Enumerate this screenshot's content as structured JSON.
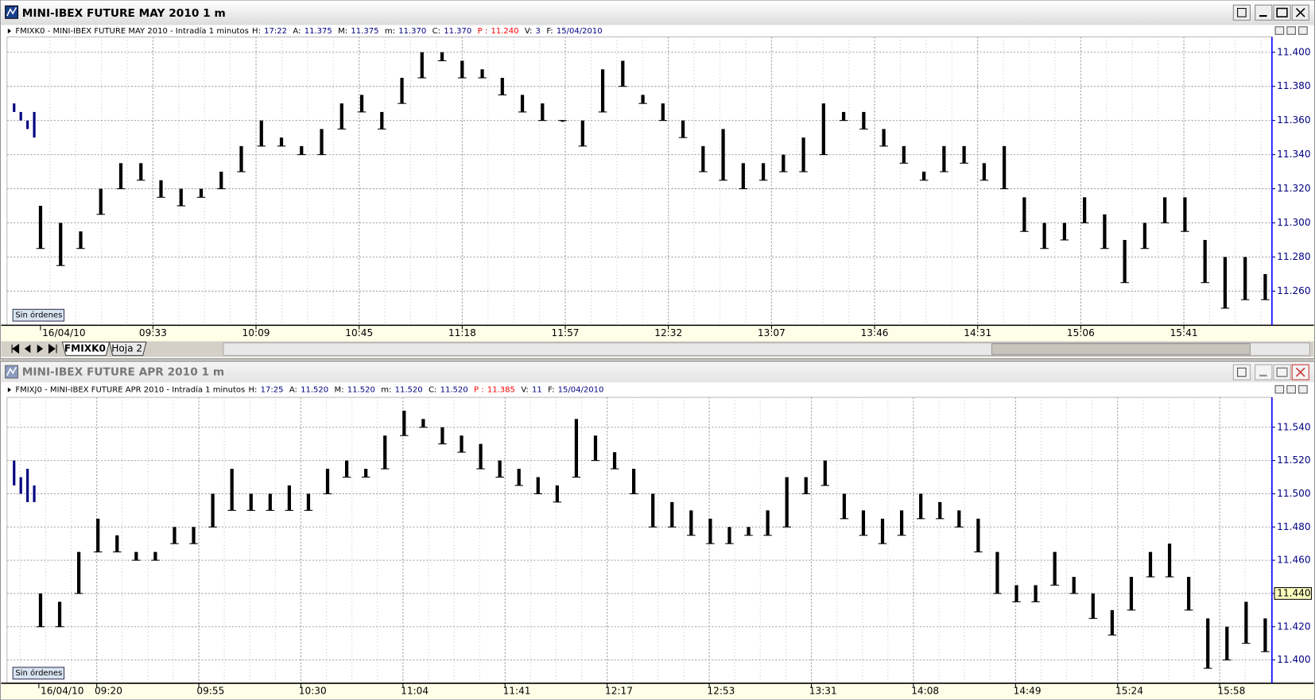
{
  "windows": [
    {
      "title": "MINI-IBEX FUTURE MAY 2010 1 m",
      "symbol": "FMIXK0 - MINI-IBEX FUTURE MAY 2010 - Intradía 1 minutos",
      "fields": [
        {
          "label": "H:",
          "value": "17:22"
        },
        {
          "label": "A:",
          "value": "11.375"
        },
        {
          "label": "M:",
          "value": "11.375"
        },
        {
          "label": "m:",
          "value": "11.370"
        },
        {
          "label": "C:",
          "value": "11.370"
        },
        {
          "label": "P :",
          "value": "11.240",
          "color": "#ff0000"
        },
        {
          "label": "V:",
          "value": "3"
        },
        {
          "label": "F:",
          "value": "15/04/2010"
        }
      ],
      "status": "Sin órdenes",
      "tabs": [
        "FMIXK0",
        "Hoja 2"
      ]
    },
    {
      "title": "MINI-IBEX FUTURE APR 2010 1 m",
      "symbol": "FMIXJ0 - MINI-IBEX FUTURE APR 2010 - Intradía 1 minutos",
      "fields": [
        {
          "label": "H:",
          "value": "17:25"
        },
        {
          "label": "A:",
          "value": "11.520"
        },
        {
          "label": "M:",
          "value": "11.520"
        },
        {
          "label": "m:",
          "value": "11.520"
        },
        {
          "label": "C:",
          "value": "11.520"
        },
        {
          "label": "P :",
          "value": "11.385",
          "color": "#ff0000"
        },
        {
          "label": "V:",
          "value": "11"
        },
        {
          "label": "F:",
          "value": "15/04/2010"
        }
      ],
      "status": "Sin órdenes"
    }
  ],
  "chart_data": [
    {
      "type": "range",
      "color": "#000000",
      "high": [
        11.31,
        11.3,
        11.295,
        11.32,
        11.335,
        11.335,
        11.325,
        11.32,
        11.32,
        11.33,
        11.345,
        11.36,
        11.35,
        11.345,
        11.355,
        11.37,
        11.375,
        11.365,
        11.385,
        11.4,
        11.4,
        11.395,
        11.39,
        11.385,
        11.375,
        11.37,
        11.36,
        11.36,
        11.39,
        11.395,
        11.375,
        11.37,
        11.36,
        11.345,
        11.355,
        11.335,
        11.335,
        11.34,
        11.35,
        11.37,
        11.365,
        11.365,
        11.355,
        11.345,
        11.33,
        11.345,
        11.345,
        11.335,
        11.345,
        11.315,
        11.3,
        11.3,
        11.315,
        11.305,
        11.29,
        11.3,
        11.315,
        11.315,
        11.29,
        11.28,
        11.28,
        11.27
      ],
      "low": [
        11.285,
        11.275,
        11.285,
        11.305,
        11.32,
        11.325,
        11.315,
        11.31,
        11.315,
        11.32,
        11.33,
        11.345,
        11.345,
        11.34,
        11.34,
        11.355,
        11.365,
        11.355,
        11.37,
        11.385,
        11.395,
        11.385,
        11.385,
        11.375,
        11.365,
        11.36,
        11.36,
        11.345,
        11.365,
        11.38,
        11.37,
        11.36,
        11.35,
        11.33,
        11.325,
        11.32,
        11.325,
        11.33,
        11.33,
        11.34,
        11.36,
        11.355,
        11.345,
        11.335,
        11.325,
        11.33,
        11.335,
        11.325,
        11.32,
        11.295,
        11.285,
        11.29,
        11.3,
        11.285,
        11.265,
        11.285,
        11.3,
        11.295,
        11.265,
        11.25,
        11.255,
        11.255
      ],
      "previous_session": {
        "color": "#000080",
        "high": [
          11.37,
          11.365,
          11.36,
          11.365
        ],
        "low": [
          11.365,
          11.36,
          11.355,
          11.35
        ]
      },
      "ylim": [
        11.24,
        11.409
      ],
      "yticks": [
        {
          "value": 11.26,
          "label": "11.260"
        },
        {
          "value": 11.28,
          "label": "11.280"
        },
        {
          "value": 11.3,
          "label": "11.300"
        },
        {
          "value": 11.32,
          "label": "11.320"
        },
        {
          "value": 11.34,
          "label": "11.340"
        },
        {
          "value": 11.36,
          "label": "11.360"
        },
        {
          "value": 11.38,
          "label": "11.380"
        },
        {
          "value": 11.4,
          "label": "11.400"
        }
      ],
      "xtick_labels": [
        "16/04/10",
        "09:33",
        "10:09",
        "10:45",
        "11:18",
        "11:57",
        "12:32",
        "13:07",
        "13:46",
        "14:31",
        "15:06",
        "15:41"
      ],
      "grid": true
    },
    {
      "type": "range",
      "color": "#000000",
      "high": [
        11.44,
        11.435,
        11.465,
        11.485,
        11.475,
        11.465,
        11.465,
        11.48,
        11.48,
        11.5,
        11.515,
        11.5,
        11.5,
        11.505,
        11.5,
        11.515,
        11.52,
        11.515,
        11.535,
        11.55,
        11.545,
        11.54,
        11.535,
        11.53,
        11.52,
        11.515,
        11.51,
        11.505,
        11.545,
        11.535,
        11.525,
        11.515,
        11.5,
        11.495,
        11.49,
        11.485,
        11.48,
        11.48,
        11.49,
        11.51,
        11.51,
        11.52,
        11.5,
        11.49,
        11.485,
        11.49,
        11.5,
        11.495,
        11.49,
        11.485,
        11.465,
        11.445,
        11.445,
        11.465,
        11.45,
        11.44,
        11.43,
        11.45,
        11.465,
        11.47,
        11.45,
        11.425,
        11.42,
        11.435,
        11.425
      ],
      "low": [
        11.42,
        11.42,
        11.44,
        11.465,
        11.465,
        11.46,
        11.46,
        11.47,
        11.47,
        11.48,
        11.49,
        11.49,
        11.49,
        11.49,
        11.49,
        11.5,
        11.51,
        11.51,
        11.515,
        11.535,
        11.54,
        11.53,
        11.525,
        11.515,
        11.51,
        11.505,
        11.5,
        11.495,
        11.51,
        11.52,
        11.515,
        11.5,
        11.48,
        11.48,
        11.475,
        11.47,
        11.47,
        11.475,
        11.475,
        11.48,
        11.5,
        11.505,
        11.485,
        11.475,
        11.47,
        11.475,
        11.485,
        11.485,
        11.48,
        11.465,
        11.44,
        11.435,
        11.435,
        11.445,
        11.44,
        11.425,
        11.415,
        11.43,
        11.45,
        11.45,
        11.43,
        11.395,
        11.4,
        11.41,
        11.405
      ],
      "previous_session": {
        "color": "#000080",
        "high": [
          11.52,
          11.51,
          11.515,
          11.505
        ],
        "low": [
          11.505,
          11.5,
          11.495,
          11.495
        ]
      },
      "last": {
        "value": 11.44,
        "label": "11.440"
      },
      "ylim": [
        11.386,
        11.558
      ],
      "yticks": [
        {
          "value": 11.4,
          "label": "11.400"
        },
        {
          "value": 11.42,
          "label": "11.420"
        },
        {
          "value": 11.44,
          "label": "11.440"
        },
        {
          "value": 11.46,
          "label": "11.460"
        },
        {
          "value": 11.48,
          "label": "11.480"
        },
        {
          "value": 11.5,
          "label": "11.500"
        },
        {
          "value": 11.52,
          "label": "11.520"
        },
        {
          "value": 11.54,
          "label": "11.540"
        }
      ],
      "xtick_labels": [
        "16/04/10",
        "09:20",
        "09:55",
        "10:30",
        "11:04",
        "11:41",
        "12:17",
        "12:53",
        "13:31",
        "14:08",
        "14:49",
        "15:24",
        "15:58"
      ],
      "grid": true
    }
  ]
}
